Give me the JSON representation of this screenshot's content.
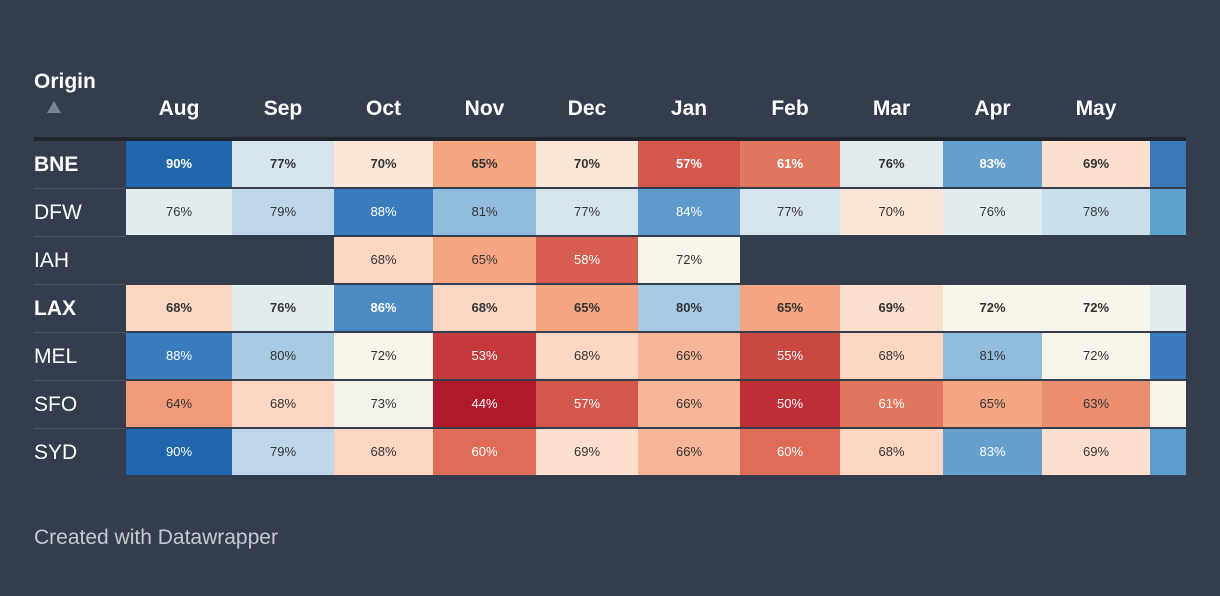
{
  "table": {
    "origin_header": "Origin",
    "columns": [
      "Aug",
      "Sep",
      "Oct",
      "Nov",
      "Dec",
      "Jan",
      "Feb",
      "Mar",
      "Apr",
      "May"
    ],
    "rows": [
      {
        "label": "BNE",
        "bold": true,
        "cells": [
          "90%",
          "77%",
          "70%",
          "65%",
          "70%",
          "57%",
          "61%",
          "76%",
          "83%",
          "69%"
        ]
      },
      {
        "label": "DFW",
        "bold": false,
        "cells": [
          "76%",
          "79%",
          "88%",
          "81%",
          "77%",
          "84%",
          "77%",
          "70%",
          "76%",
          "78%"
        ]
      },
      {
        "label": "IAH",
        "bold": false,
        "cells": [
          null,
          null,
          "68%",
          "65%",
          "58%",
          "72%",
          null,
          null,
          null,
          null
        ]
      },
      {
        "label": "LAX",
        "bold": true,
        "cells": [
          "68%",
          "76%",
          "86%",
          "68%",
          "65%",
          "80%",
          "65%",
          "69%",
          "72%",
          "72%"
        ]
      },
      {
        "label": "MEL",
        "bold": false,
        "cells": [
          "88%",
          "80%",
          "72%",
          "53%",
          "68%",
          "66%",
          "55%",
          "68%",
          "81%",
          "72%"
        ]
      },
      {
        "label": "SFO",
        "bold": false,
        "cells": [
          "64%",
          "68%",
          "73%",
          "44%",
          "57%",
          "66%",
          "50%",
          "61%",
          "65%",
          "63%"
        ]
      },
      {
        "label": "SYD",
        "bold": false,
        "cells": [
          "90%",
          "79%",
          "68%",
          "60%",
          "69%",
          "66%",
          "60%",
          "68%",
          "83%",
          "69%"
        ]
      }
    ]
  },
  "footer": "Created with Datawrapper"
}
